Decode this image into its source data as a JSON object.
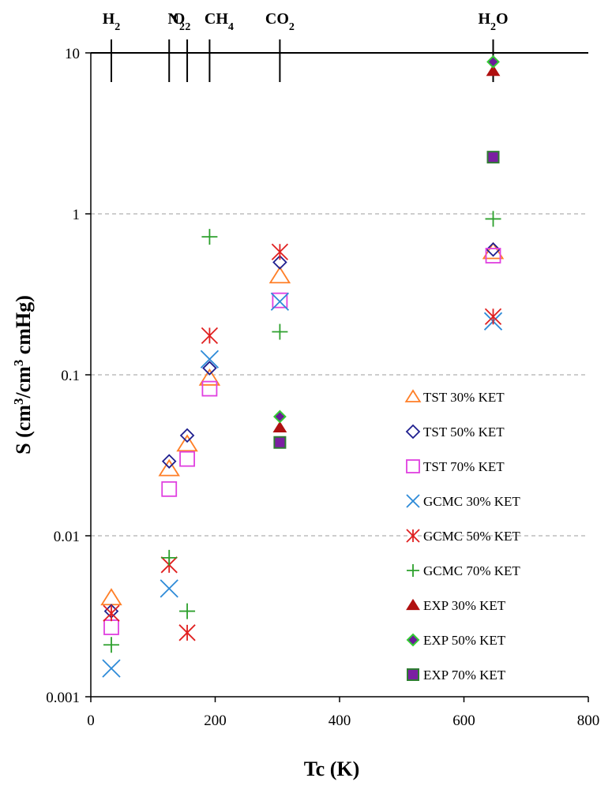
{
  "chart_data": {
    "type": "scatter",
    "xlabel": "Tc  (K)",
    "ylabel": "S (cm³/cm³ cmHg)",
    "xlim": [
      0,
      800
    ],
    "ylim": [
      0.001,
      10
    ],
    "yscale": "log",
    "x_ticks": [
      "0",
      "200",
      "400",
      "600",
      "800"
    ],
    "y_ticks": [
      "0.001",
      "0.01",
      "0.1",
      "1",
      "10"
    ],
    "grid": "horizontal dashed at 0.01, 0.1, 1",
    "legend_position": "lower-right",
    "top_markers": [
      {
        "label": "H2",
        "x": 33
      },
      {
        "label": "N2",
        "x": 126
      },
      {
        "label": "O2",
        "x": 155
      },
      {
        "label": "CH4",
        "x": 191
      },
      {
        "label": "CO2",
        "x": 304
      },
      {
        "label": "H2O",
        "x": 647
      }
    ],
    "series": [
      {
        "name": "TST 30% KET",
        "marker": "triangle-open",
        "color": "#FF7F27",
        "points": [
          [
            33,
            0.0041
          ],
          [
            126,
            0.026
          ],
          [
            155,
            0.037
          ],
          [
            191,
            0.095
          ],
          [
            304,
            0.41
          ],
          [
            647,
            0.58
          ]
        ]
      },
      {
        "name": "TST 50% KET",
        "marker": "diamond-open",
        "color": "#1F1F8F",
        "points": [
          [
            33,
            0.0034
          ],
          [
            126,
            0.029
          ],
          [
            155,
            0.042
          ],
          [
            191,
            0.11
          ],
          [
            304,
            0.5
          ],
          [
            647,
            0.6
          ]
        ]
      },
      {
        "name": "TST 70% KET",
        "marker": "square-open",
        "color": "#E040E0",
        "points": [
          [
            33,
            0.0027
          ],
          [
            126,
            0.0195
          ],
          [
            155,
            0.03
          ],
          [
            191,
            0.082
          ],
          [
            304,
            0.29
          ],
          [
            647,
            0.55
          ]
        ]
      },
      {
        "name": "GCMC 30% KET",
        "marker": "x",
        "color": "#2E8BD8",
        "points": [
          [
            33,
            0.0015
          ],
          [
            126,
            0.0047
          ],
          [
            191,
            0.125
          ],
          [
            304,
            0.285
          ],
          [
            647,
            0.215
          ]
        ]
      },
      {
        "name": "GCMC 50% KET",
        "marker": "star",
        "color": "#E02020",
        "points": [
          [
            33,
            0.0033
          ],
          [
            126,
            0.0066
          ],
          [
            155,
            0.0025
          ],
          [
            191,
            0.175
          ],
          [
            304,
            0.58
          ],
          [
            647,
            0.23
          ]
        ]
      },
      {
        "name": "GCMC 70% KET",
        "marker": "plus",
        "color": "#2CA02C",
        "points": [
          [
            33,
            0.0021
          ],
          [
            126,
            0.0073
          ],
          [
            155,
            0.0034
          ],
          [
            191,
            0.72
          ],
          [
            304,
            0.185
          ],
          [
            647,
            0.93
          ]
        ]
      },
      {
        "name": "EXP 30% KET",
        "marker": "triangle-filled",
        "color": "#B01010",
        "points": [
          [
            304,
            0.047
          ],
          [
            647,
            7.7
          ]
        ]
      },
      {
        "name": "EXP 50% KET",
        "marker": "diamond-filled",
        "color": "#6A1B9A",
        "edge": "#33CC33",
        "points": [
          [
            304,
            0.055
          ],
          [
            647,
            8.8
          ]
        ]
      },
      {
        "name": "EXP 70% KET",
        "marker": "square-filled",
        "color": "#7B1FA2",
        "edge": "#2E7D32",
        "points": [
          [
            304,
            0.038
          ],
          [
            647,
            2.25
          ]
        ]
      }
    ]
  }
}
